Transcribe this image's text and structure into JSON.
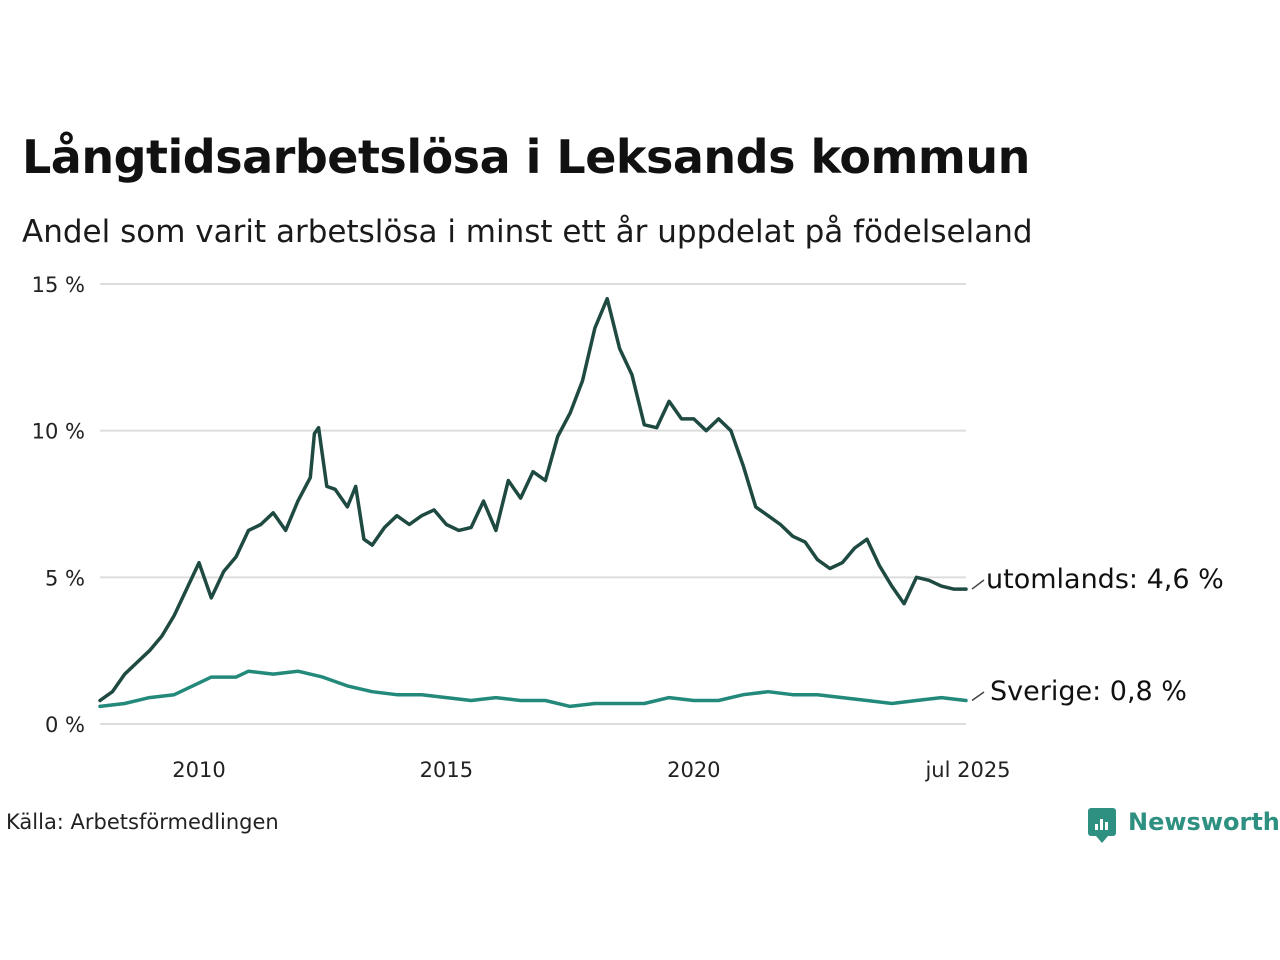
{
  "header": {
    "title": "Långtidsarbetslösa i Leksands kommun",
    "subtitle": "Andel som varit arbetslösa i minst ett år uppdelat på födelseland"
  },
  "footer": {
    "source": "Källa: Arbetsförmedlingen",
    "logo_text": "Newsworthy"
  },
  "colors": {
    "utomlands": "#1f4a42",
    "sverige": "#23897b",
    "grid": "#dddddd",
    "brand": "#2e9080"
  },
  "chart_data": {
    "type": "line",
    "title": "Långtidsarbetslösa i Leksands kommun",
    "subtitle": "Andel som varit arbetslösa i minst ett år uppdelat på födelseland",
    "xlabel": "",
    "ylabel": "",
    "ylim": [
      0,
      15
    ],
    "y_ticks": [
      "0 %",
      "5 %",
      "10 %",
      "15 %"
    ],
    "x_ticks": [
      "2010",
      "2015",
      "2020",
      "jul 2025"
    ],
    "grid": true,
    "legend": "end-labels",
    "series": [
      {
        "name": "utomlands",
        "end_label": "utomlands: 4,6 %",
        "points": [
          [
            "2008-01",
            0.8
          ],
          [
            "2008-04",
            1.1
          ],
          [
            "2008-07",
            1.7
          ],
          [
            "2008-10",
            2.1
          ],
          [
            "2009-01",
            2.5
          ],
          [
            "2009-04",
            3.0
          ],
          [
            "2009-07",
            3.7
          ],
          [
            "2009-10",
            4.6
          ],
          [
            "2010-01",
            5.5
          ],
          [
            "2010-04",
            4.3
          ],
          [
            "2010-07",
            5.2
          ],
          [
            "2010-10",
            5.7
          ],
          [
            "2011-01",
            6.6
          ],
          [
            "2011-04",
            6.8
          ],
          [
            "2011-07",
            7.2
          ],
          [
            "2011-10",
            6.6
          ],
          [
            "2012-01",
            7.6
          ],
          [
            "2012-04",
            8.4
          ],
          [
            "2012-05",
            9.9
          ],
          [
            "2012-06",
            10.1
          ],
          [
            "2012-08",
            8.1
          ],
          [
            "2012-10",
            8.0
          ],
          [
            "2013-01",
            7.4
          ],
          [
            "2013-03",
            8.1
          ],
          [
            "2013-05",
            6.3
          ],
          [
            "2013-07",
            6.1
          ],
          [
            "2013-10",
            6.7
          ],
          [
            "2014-01",
            7.1
          ],
          [
            "2014-04",
            6.8
          ],
          [
            "2014-07",
            7.1
          ],
          [
            "2014-10",
            7.3
          ],
          [
            "2015-01",
            6.8
          ],
          [
            "2015-04",
            6.6
          ],
          [
            "2015-07",
            6.7
          ],
          [
            "2015-10",
            7.6
          ],
          [
            "2016-01",
            6.6
          ],
          [
            "2016-04",
            8.3
          ],
          [
            "2016-07",
            7.7
          ],
          [
            "2016-10",
            8.6
          ],
          [
            "2017-01",
            8.3
          ],
          [
            "2017-04",
            9.8
          ],
          [
            "2017-07",
            10.6
          ],
          [
            "2017-10",
            11.7
          ],
          [
            "2018-01",
            13.5
          ],
          [
            "2018-04",
            14.5
          ],
          [
            "2018-07",
            12.8
          ],
          [
            "2018-10",
            11.9
          ],
          [
            "2019-01",
            10.2
          ],
          [
            "2019-04",
            10.1
          ],
          [
            "2019-07",
            11.0
          ],
          [
            "2019-10",
            10.4
          ],
          [
            "2020-01",
            10.4
          ],
          [
            "2020-04",
            10.0
          ],
          [
            "2020-07",
            10.4
          ],
          [
            "2020-10",
            10.0
          ],
          [
            "2021-01",
            8.8
          ],
          [
            "2021-04",
            7.4
          ],
          [
            "2021-07",
            7.1
          ],
          [
            "2021-10",
            6.8
          ],
          [
            "2022-01",
            6.4
          ],
          [
            "2022-04",
            6.2
          ],
          [
            "2022-07",
            5.6
          ],
          [
            "2022-10",
            5.3
          ],
          [
            "2023-01",
            5.5
          ],
          [
            "2023-04",
            6.0
          ],
          [
            "2023-07",
            6.3
          ],
          [
            "2023-10",
            5.4
          ],
          [
            "2024-01",
            4.7
          ],
          [
            "2024-04",
            4.1
          ],
          [
            "2024-07",
            5.0
          ],
          [
            "2024-10",
            4.9
          ],
          [
            "2025-01",
            4.7
          ],
          [
            "2025-04",
            4.6
          ],
          [
            "2025-07",
            4.6
          ]
        ]
      },
      {
        "name": "Sverige",
        "end_label": "Sverige: 0,8 %",
        "points": [
          [
            "2008-01",
            0.6
          ],
          [
            "2008-07",
            0.7
          ],
          [
            "2009-01",
            0.9
          ],
          [
            "2009-07",
            1.0
          ],
          [
            "2010-01",
            1.4
          ],
          [
            "2010-04",
            1.6
          ],
          [
            "2010-10",
            1.6
          ],
          [
            "2011-01",
            1.8
          ],
          [
            "2011-07",
            1.7
          ],
          [
            "2012-01",
            1.8
          ],
          [
            "2012-07",
            1.6
          ],
          [
            "2013-01",
            1.3
          ],
          [
            "2013-07",
            1.1
          ],
          [
            "2014-01",
            1.0
          ],
          [
            "2014-07",
            1.0
          ],
          [
            "2015-01",
            0.9
          ],
          [
            "2015-07",
            0.8
          ],
          [
            "2016-01",
            0.9
          ],
          [
            "2016-07",
            0.8
          ],
          [
            "2017-01",
            0.8
          ],
          [
            "2017-07",
            0.6
          ],
          [
            "2018-01",
            0.7
          ],
          [
            "2018-07",
            0.7
          ],
          [
            "2019-01",
            0.7
          ],
          [
            "2019-07",
            0.9
          ],
          [
            "2020-01",
            0.8
          ],
          [
            "2020-07",
            0.8
          ],
          [
            "2021-01",
            1.0
          ],
          [
            "2021-07",
            1.1
          ],
          [
            "2022-01",
            1.0
          ],
          [
            "2022-07",
            1.0
          ],
          [
            "2023-01",
            0.9
          ],
          [
            "2023-07",
            0.8
          ],
          [
            "2024-01",
            0.7
          ],
          [
            "2024-07",
            0.8
          ],
          [
            "2025-01",
            0.9
          ],
          [
            "2025-07",
            0.8
          ]
        ]
      }
    ]
  }
}
